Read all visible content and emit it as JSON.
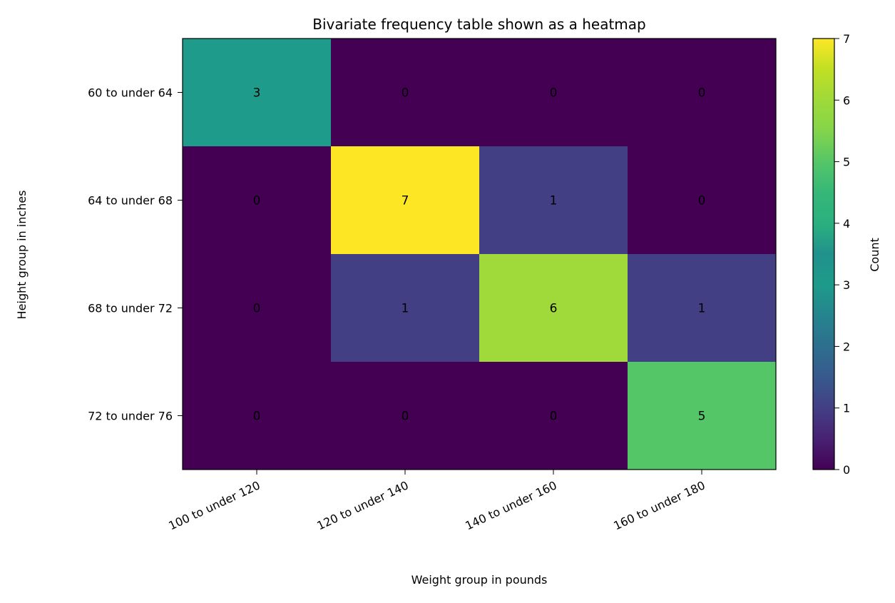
{
  "chart_data": {
    "type": "heatmap",
    "title": "Bivariate frequency table shown as a heatmap",
    "xlabel": "Weight group in pounds",
    "ylabel": "Height group in inches",
    "x_categories": [
      "100 to under 120",
      "120 to under 140",
      "140 to under 160",
      "160 to under 180"
    ],
    "y_categories": [
      "60 to under 64",
      "64 to under 68",
      "68 to under 72",
      "72 to under 76"
    ],
    "values": [
      [
        3,
        0,
        0,
        0
      ],
      [
        0,
        7,
        1,
        0
      ],
      [
        0,
        1,
        6,
        1
      ],
      [
        0,
        0,
        0,
        5
      ]
    ],
    "cell_labels_shown": true,
    "colormap": "viridis",
    "colorbar": {
      "label": "Count",
      "range": [
        0,
        7
      ],
      "ticks": [
        0,
        1,
        2,
        3,
        4,
        5,
        6,
        7
      ]
    },
    "grid": false
  }
}
